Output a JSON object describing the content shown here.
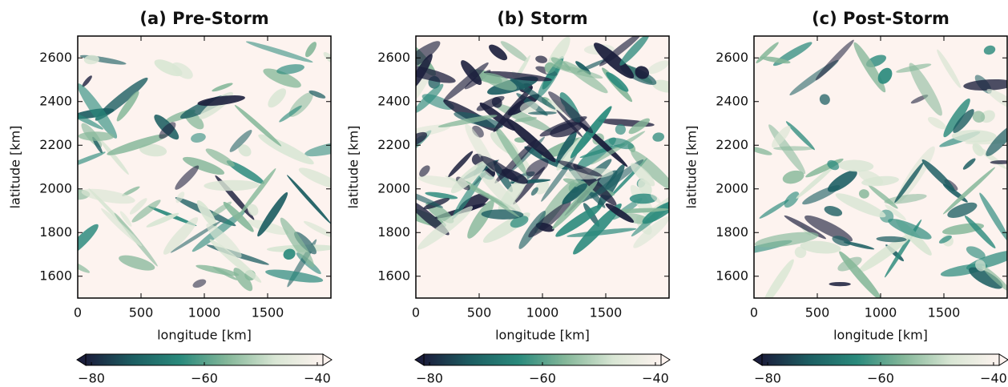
{
  "chart_data": [
    {
      "type": "field",
      "title": "(a) Pre-Storm",
      "xlabel": "longitude [km]",
      "ylabel": "latitude [km]",
      "xlim": [
        0,
        2000
      ],
      "xticks": [
        0,
        500,
        1000,
        1500
      ],
      "ylim": [
        1500,
        2700
      ],
      "yticks": [
        1600,
        1800,
        2000,
        2200,
        2400,
        2600
      ],
      "colorbar": {
        "lim": [
          -81,
          -39
        ],
        "ticks": [
          {
            "value": -80,
            "label": "−80"
          },
          {
            "value": -60,
            "label": "−60"
          },
          {
            "value": -40,
            "label": "−40"
          }
        ]
      },
      "colormap": [
        "#1b1e3c",
        "#1c5e62",
        "#2a8a7c",
        "#86b89a",
        "#d9e6d4",
        "#fdf3ef"
      ]
    },
    {
      "type": "field",
      "title": "(b) Storm",
      "xlabel": "longitude [km]",
      "ylabel": "latitude [km]",
      "xlim": [
        0,
        2000
      ],
      "xticks": [
        0,
        500,
        1000,
        1500
      ],
      "ylim": [
        1500,
        2700
      ],
      "yticks": [
        1600,
        1800,
        2000,
        2200,
        2400,
        2600
      ],
      "colorbar": {
        "lim": [
          -81,
          -39
        ],
        "ticks": [
          {
            "value": -80,
            "label": "−80"
          },
          {
            "value": -60,
            "label": "−60"
          },
          {
            "value": -40,
            "label": "−40"
          }
        ]
      },
      "colormap": [
        "#1b1e3c",
        "#1c5e62",
        "#2a8a7c",
        "#86b89a",
        "#d9e6d4",
        "#fdf3ef"
      ]
    },
    {
      "type": "field",
      "title": "(c) Post-Storm",
      "xlabel": "longitude [km]",
      "ylabel": "latitude [km]",
      "xlim": [
        0,
        2000
      ],
      "xticks": [
        0,
        500,
        1000,
        1500
      ],
      "ylim": [
        1500,
        2700
      ],
      "yticks": [
        1600,
        1800,
        2000,
        2200,
        2400,
        2600
      ],
      "colorbar": {
        "lim": [
          -81,
          -39
        ],
        "ticks": [
          {
            "value": -80,
            "label": "−80"
          },
          {
            "value": -60,
            "label": "−60"
          },
          {
            "value": -40,
            "label": "−40"
          }
        ]
      },
      "colormap": [
        "#1b1e3c",
        "#1c5e62",
        "#2a8a7c",
        "#86b89a",
        "#d9e6d4",
        "#fdf3ef"
      ]
    }
  ]
}
